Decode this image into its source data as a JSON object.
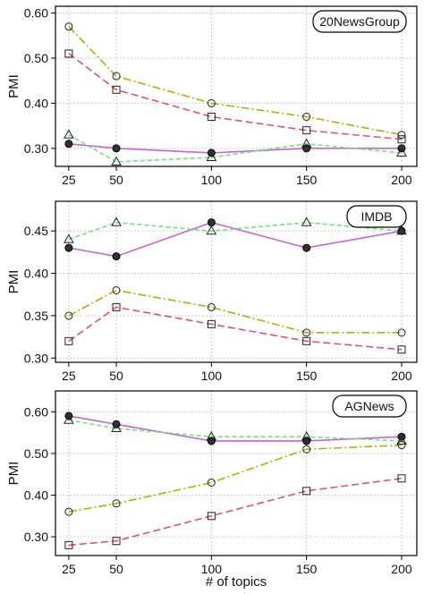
{
  "colors": {
    "s_purple": "#c95fe6",
    "s_green": "#6ee86e",
    "s_olive": "#a8b400",
    "s_red": "#e8506a",
    "grid": "#c9c9c9",
    "frame": "#000000"
  },
  "chart_data": [
    {
      "type": "line",
      "title": "20NewsGroup",
      "xlabel": "",
      "ylabel": "PMI",
      "x": [
        25,
        50,
        100,
        150,
        200
      ],
      "xlim": [
        18,
        208
      ],
      "ylim": [
        0.26,
        0.615
      ],
      "yticks": [
        0.3,
        0.4,
        0.5,
        0.6
      ],
      "ytick_labels": [
        "0.30",
        "0.40",
        "0.50",
        "0.60"
      ],
      "xtick_labels": [
        "25",
        "50",
        "100",
        "150",
        "200"
      ],
      "grid": true,
      "series": [
        {
          "color_key": "s_purple",
          "dash": "solid",
          "marker": "filled-circle",
          "values": [
            0.31,
            0.3,
            0.29,
            0.3,
            0.3
          ]
        },
        {
          "color_key": "s_green",
          "dash": "dash",
          "marker": "triangle",
          "values": [
            0.33,
            0.27,
            0.28,
            0.31,
            0.29
          ]
        },
        {
          "color_key": "s_olive",
          "dash": "dashdot",
          "marker": "circle",
          "values": [
            0.57,
            0.46,
            0.4,
            0.37,
            0.33
          ]
        },
        {
          "color_key": "s_red",
          "dash": "longdash",
          "marker": "square",
          "values": [
            0.51,
            0.43,
            0.37,
            0.34,
            0.32
          ]
        }
      ]
    },
    {
      "type": "line",
      "title": "IMDB",
      "xlabel": "",
      "ylabel": "PMI",
      "x": [
        25,
        50,
        100,
        150,
        200
      ],
      "xlim": [
        18,
        208
      ],
      "ylim": [
        0.295,
        0.485
      ],
      "yticks": [
        0.3,
        0.35,
        0.4,
        0.45
      ],
      "ytick_labels": [
        "0.30",
        "0.35",
        "0.40",
        "0.45"
      ],
      "xtick_labels": [
        "25",
        "50",
        "100",
        "150",
        "200"
      ],
      "grid": true,
      "series": [
        {
          "color_key": "s_purple",
          "dash": "solid",
          "marker": "filled-circle",
          "values": [
            0.43,
            0.42,
            0.46,
            0.43,
            0.45
          ]
        },
        {
          "color_key": "s_green",
          "dash": "dash",
          "marker": "triangle",
          "values": [
            0.44,
            0.46,
            0.45,
            0.46,
            0.45
          ]
        },
        {
          "color_key": "s_olive",
          "dash": "dashdot",
          "marker": "circle",
          "values": [
            0.35,
            0.38,
            0.36,
            0.33,
            0.33
          ]
        },
        {
          "color_key": "s_red",
          "dash": "longdash",
          "marker": "square",
          "values": [
            0.32,
            0.36,
            0.34,
            0.32,
            0.31
          ]
        }
      ]
    },
    {
      "type": "line",
      "title": "AGNews",
      "xlabel": "# of topics",
      "ylabel": "PMI",
      "x": [
        25,
        50,
        100,
        150,
        200
      ],
      "xlim": [
        18,
        208
      ],
      "ylim": [
        0.255,
        0.65
      ],
      "yticks": [
        0.3,
        0.4,
        0.5,
        0.6
      ],
      "ytick_labels": [
        "0.30",
        "0.40",
        "0.50",
        "0.60"
      ],
      "xtick_labels": [
        "25",
        "50",
        "100",
        "150",
        "200"
      ],
      "grid": true,
      "series": [
        {
          "color_key": "s_purple",
          "dash": "solid",
          "marker": "filled-circle",
          "values": [
            0.59,
            0.57,
            0.53,
            0.53,
            0.54
          ]
        },
        {
          "color_key": "s_green",
          "dash": "dash",
          "marker": "triangle",
          "values": [
            0.58,
            0.56,
            0.54,
            0.54,
            0.53
          ]
        },
        {
          "color_key": "s_olive",
          "dash": "dashdot",
          "marker": "circle",
          "values": [
            0.36,
            0.38,
            0.43,
            0.51,
            0.52
          ]
        },
        {
          "color_key": "s_red",
          "dash": "longdash",
          "marker": "square",
          "values": [
            0.28,
            0.29,
            0.35,
            0.41,
            0.44
          ]
        }
      ]
    }
  ]
}
